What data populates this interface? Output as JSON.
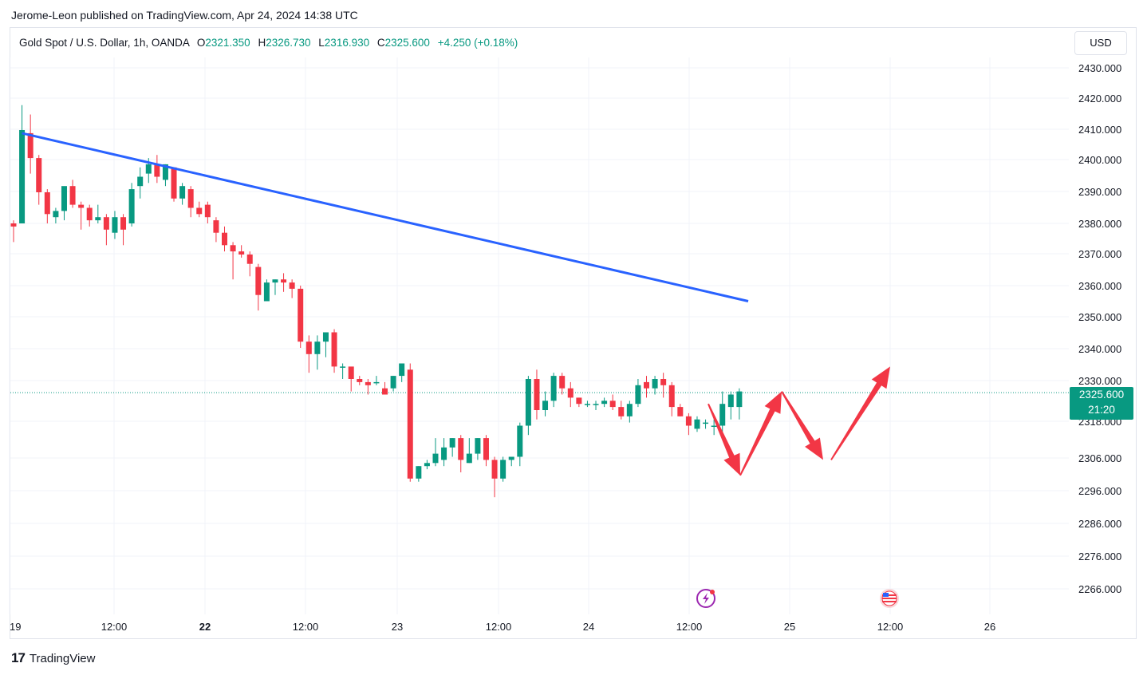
{
  "header": {
    "publisher_line": "Jerome-Leon published on TradingView.com, Apr 24, 2024 14:38 UTC"
  },
  "legend": {
    "symbol": "Gold Spot / U.S. Dollar, 1h, OANDA",
    "o_label": "O",
    "o_value": "2321.350",
    "h_label": "H",
    "h_value": "2326.730",
    "l_label": "L",
    "l_value": "2316.930",
    "c_label": "C",
    "c_value": "2325.600",
    "change": "+4.250 (+0.18%)"
  },
  "currency_button": "USD",
  "price_badge": {
    "price": "2325.600",
    "countdown": "21:20"
  },
  "footer": {
    "brand": "TradingView",
    "brand_mark": "17"
  },
  "colors": {
    "up": "#089981",
    "down": "#f23645",
    "trendline": "#2962ff",
    "arrow": "#f23645"
  },
  "icons": [
    "lightning-event-icon",
    "us-flag-event-icon"
  ],
  "chart_data": {
    "type": "candlestick",
    "symbol": "Gold Spot / U.S. Dollar",
    "interval": "1h",
    "ylim": [
      2258,
      2438
    ],
    "y_ticks": [
      "2430.000",
      "2420.000",
      "2410.000",
      "2400.000",
      "2390.000",
      "2380.000",
      "2370.000",
      "2360.000",
      "2350.000",
      "2340.000",
      "2330.000",
      "2318.000",
      "2306.000",
      "2296.000",
      "2286.000",
      "2276.000",
      "2266.000"
    ],
    "x_ticks": [
      {
        "label": "19",
        "bold": false
      },
      {
        "label": "12:00",
        "bold": false
      },
      {
        "label": "22",
        "bold": true
      },
      {
        "label": "12:00",
        "bold": false
      },
      {
        "label": "23",
        "bold": false
      },
      {
        "label": "12:00",
        "bold": false
      },
      {
        "label": "24",
        "bold": false
      },
      {
        "label": "12:00",
        "bold": false
      },
      {
        "label": "25",
        "bold": false
      },
      {
        "label": "12:00",
        "bold": false
      },
      {
        "label": "26",
        "bold": false
      }
    ],
    "last_price": 2325.6,
    "candles": [
      [
        2380,
        2381,
        2374,
        2379
      ],
      [
        2380,
        2418,
        2380,
        2410
      ],
      [
        2409,
        2415,
        2396,
        2401
      ],
      [
        2401,
        2402,
        2386,
        2390
      ],
      [
        2390,
        2391,
        2380,
        2383
      ],
      [
        2382,
        2385,
        2380,
        2384
      ],
      [
        2384,
        2391,
        2381,
        2392
      ],
      [
        2392,
        2394,
        2385,
        2386
      ],
      [
        2386,
        2387,
        2378,
        2385
      ],
      [
        2385,
        2386,
        2379,
        2381
      ],
      [
        2381,
        2386,
        2380,
        2382
      ],
      [
        2382,
        2383,
        2373,
        2378
      ],
      [
        2377,
        2384,
        2375,
        2382
      ],
      [
        2382,
        2383,
        2373,
        2378
      ],
      [
        2380,
        2393,
        2379,
        2391
      ],
      [
        2392,
        2398,
        2388,
        2395
      ],
      [
        2396,
        2401,
        2393,
        2399
      ],
      [
        2399,
        2402,
        2393,
        2395
      ],
      [
        2394,
        2399,
        2392,
        2399
      ],
      [
        2398,
        2398,
        2387,
        2388
      ],
      [
        2388,
        2393,
        2386,
        2392
      ],
      [
        2391,
        2392,
        2382,
        2385
      ],
      [
        2385,
        2387,
        2382,
        2383
      ],
      [
        2386,
        2387,
        2380,
        2382
      ],
      [
        2381,
        2382,
        2374,
        2377
      ],
      [
        2377,
        2379,
        2371,
        2373
      ],
      [
        2373,
        2374,
        2362,
        2371
      ],
      [
        2371,
        2373,
        2369,
        2370
      ],
      [
        2370,
        2371,
        2363,
        2367
      ],
      [
        2366,
        2367,
        2352,
        2357
      ],
      [
        2355,
        2362,
        2355,
        2361
      ],
      [
        2361,
        2362,
        2357,
        2362
      ],
      [
        2362,
        2364,
        2358,
        2361
      ],
      [
        2361,
        2362,
        2356,
        2359
      ],
      [
        2359,
        2360,
        2340,
        2342
      ],
      [
        2342,
        2344,
        2332,
        2338
      ],
      [
        2338,
        2344,
        2333,
        2342
      ],
      [
        2342,
        2344,
        2337,
        2345
      ],
      [
        2345,
        2346,
        2332,
        2334
      ],
      [
        2334,
        2335,
        2330,
        2334
      ],
      [
        2334,
        2333,
        2326,
        2330
      ],
      [
        2330,
        2331,
        2328,
        2329
      ],
      [
        2329,
        2330,
        2325,
        2328
      ],
      [
        2329,
        2331,
        2328,
        2329
      ],
      [
        2327,
        2329,
        2326,
        2325
      ],
      [
        2327,
        2331,
        2326,
        2331
      ],
      [
        2331,
        2334,
        2329,
        2335
      ],
      [
        2333,
        2335,
        2297,
        2298
      ],
      [
        2298,
        2302,
        2297,
        2302
      ],
      [
        2302,
        2304,
        2301,
        2303
      ],
      [
        2303,
        2311,
        2302,
        2306
      ],
      [
        2304,
        2311,
        2302,
        2308
      ],
      [
        2308,
        2311,
        2305,
        2311
      ],
      [
        2311,
        2312,
        2300,
        2304
      ],
      [
        2303,
        2311,
        2303,
        2306
      ],
      [
        2306,
        2311,
        2304,
        2311
      ],
      [
        2311,
        2312,
        2302,
        2304
      ],
      [
        2304,
        2305,
        2292,
        2298
      ],
      [
        2298,
        2305,
        2297,
        2304
      ],
      [
        2304,
        2305,
        2302,
        2305
      ],
      [
        2305,
        2316,
        2302,
        2315
      ],
      [
        2315,
        2331,
        2312,
        2330
      ],
      [
        2330,
        2333,
        2317,
        2320
      ],
      [
        2320,
        2326,
        2318,
        2323
      ],
      [
        2323,
        2332,
        2321,
        2331
      ],
      [
        2331,
        2332,
        2325,
        2327
      ],
      [
        2327,
        2329,
        2321,
        2324
      ],
      [
        2324,
        2324,
        2321,
        2322
      ],
      [
        2322,
        2323,
        2321,
        2322
      ],
      [
        2322,
        2323,
        2320,
        2322
      ],
      [
        2322,
        2324,
        2321,
        2323
      ],
      [
        2323,
        2325,
        2320,
        2321
      ],
      [
        2321,
        2323,
        2317,
        2318
      ],
      [
        2318,
        2323,
        2316,
        2322
      ],
      [
        2322,
        2330,
        2321,
        2328
      ],
      [
        2329,
        2331,
        2324,
        2327
      ],
      [
        2327,
        2331,
        2325,
        2330
      ],
      [
        2330,
        2332,
        2324,
        2328
      ],
      [
        2328,
        2329,
        2318,
        2321
      ],
      [
        2321,
        2322,
        2318,
        2318
      ],
      [
        2318,
        2319,
        2312,
        2315
      ],
      [
        2314,
        2318,
        2313,
        2317
      ],
      [
        2316,
        2317,
        2314,
        2316
      ],
      [
        2315,
        2317,
        2312,
        2315
      ],
      [
        2315,
        2326,
        2313,
        2322
      ],
      [
        2321,
        2326,
        2317,
        2325
      ],
      [
        2321,
        2327,
        2317,
        2326
      ]
    ],
    "trendline": {
      "from": {
        "bar": 1,
        "price": 2409
      },
      "to": {
        "bar": 83,
        "price": 2355
      }
    },
    "projection_arrows": [
      {
        "from_price": 2322,
        "to_price": 2299
      },
      {
        "from_price": 2299,
        "to_price": 2326
      },
      {
        "from_price": 2326,
        "to_price": 2304
      },
      {
        "from_price": 2304,
        "to_price": 2334
      }
    ]
  }
}
